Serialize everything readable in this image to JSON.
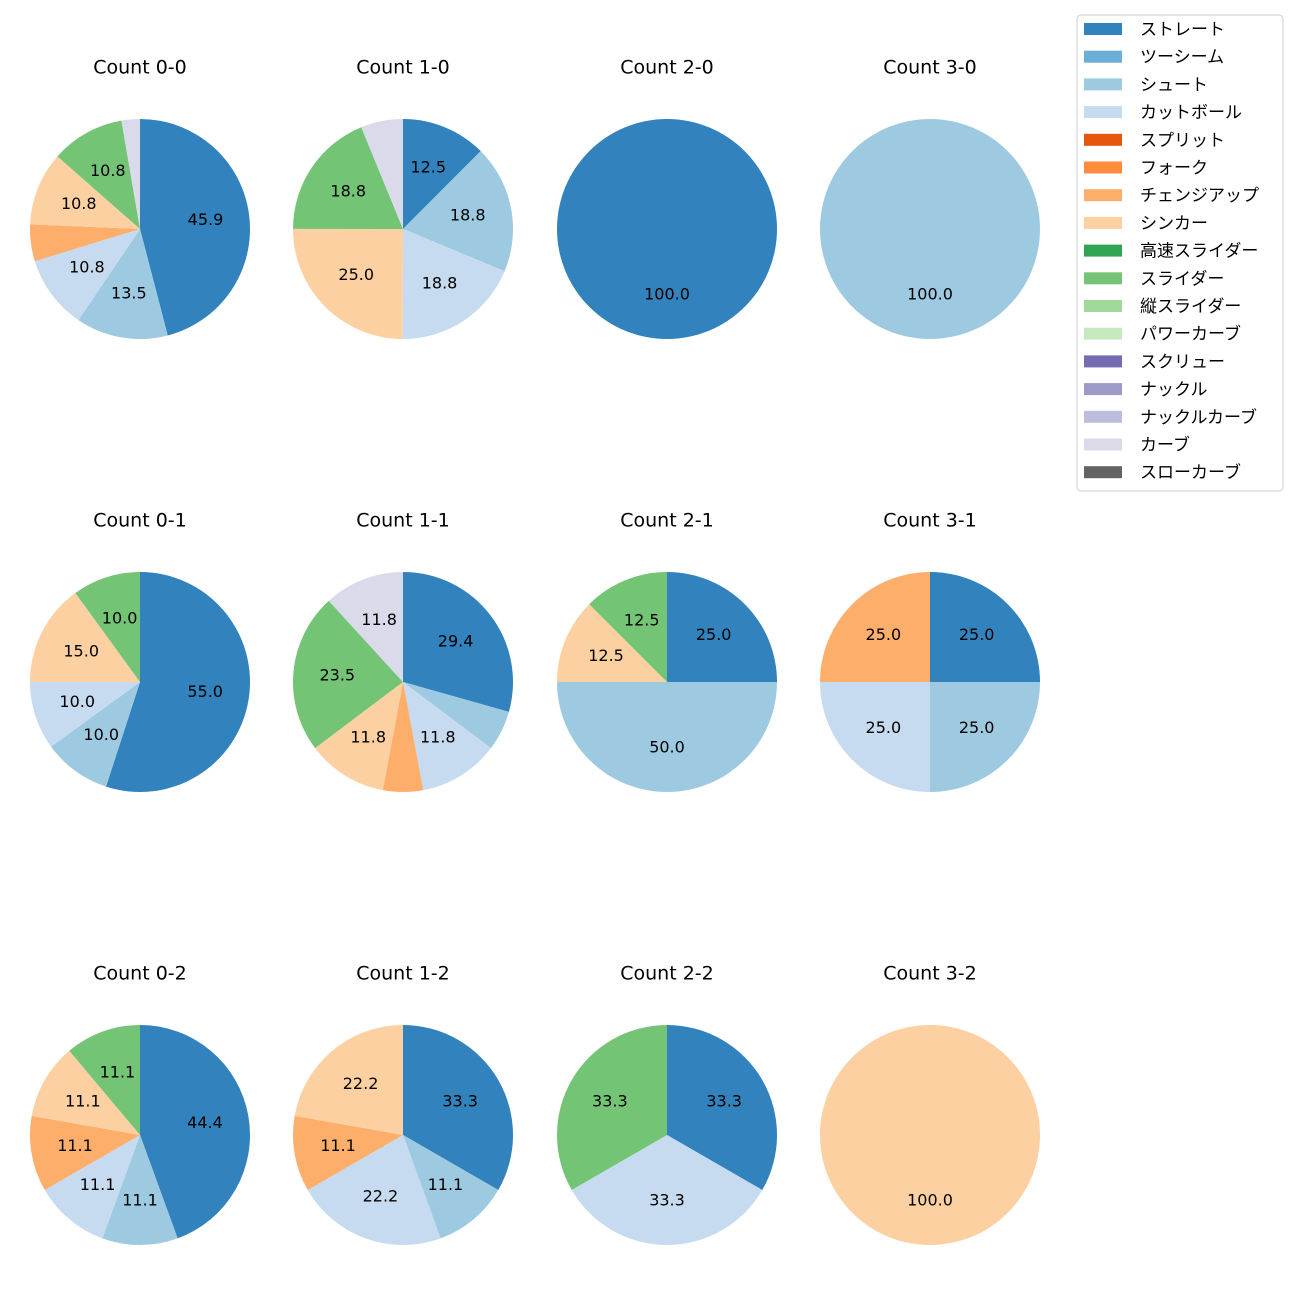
{
  "chart_data": [
    {
      "type": "pie",
      "title": "Count 0-0",
      "categories": [
        "ストレート",
        "シュート",
        "カットボール",
        "チェンジアップ",
        "シンカー",
        "スライダー",
        "カーブ"
      ],
      "values": [
        45.9,
        13.5,
        10.8,
        5.4,
        10.8,
        10.8,
        2.7
      ],
      "value_labels": [
        "45.9",
        "13.5",
        "10.8",
        null,
        "10.8",
        "10.8",
        null
      ]
    },
    {
      "type": "pie",
      "title": "Count 1-0",
      "categories": [
        "ストレート",
        "シュート",
        "カットボール",
        "シンカー",
        "スライダー",
        "カーブ"
      ],
      "values": [
        12.5,
        18.8,
        18.8,
        25.0,
        18.8,
        6.2
      ],
      "value_labels": [
        "12.5",
        "18.8",
        "18.8",
        "25.0",
        "18.8",
        null
      ]
    },
    {
      "type": "pie",
      "title": "Count 2-0",
      "categories": [
        "ストレート"
      ],
      "values": [
        100.0
      ],
      "value_labels": [
        "100.0"
      ]
    },
    {
      "type": "pie",
      "title": "Count 3-0",
      "categories": [
        "シュート"
      ],
      "values": [
        100.0
      ],
      "value_labels": [
        "100.0"
      ]
    },
    {
      "type": "pie",
      "title": "Count 0-1",
      "categories": [
        "ストレート",
        "シュート",
        "カットボール",
        "シンカー",
        "スライダー"
      ],
      "values": [
        55.0,
        10.0,
        10.0,
        15.0,
        10.0
      ],
      "value_labels": [
        "55.0",
        "10.0",
        "10.0",
        "15.0",
        "10.0"
      ]
    },
    {
      "type": "pie",
      "title": "Count 1-1",
      "categories": [
        "ストレート",
        "シュート",
        "カットボール",
        "チェンジアップ",
        "シンカー",
        "スライダー",
        "カーブ"
      ],
      "values": [
        29.4,
        5.9,
        11.8,
        5.9,
        11.8,
        23.5,
        11.8
      ],
      "value_labels": [
        "29.4",
        null,
        "11.8",
        null,
        "11.8",
        "23.5",
        "11.8"
      ]
    },
    {
      "type": "pie",
      "title": "Count 2-1",
      "categories": [
        "ストレート",
        "シュート",
        "シンカー",
        "スライダー"
      ],
      "values": [
        25.0,
        50.0,
        12.5,
        12.5
      ],
      "value_labels": [
        "25.0",
        "50.0",
        "12.5",
        "12.5"
      ]
    },
    {
      "type": "pie",
      "title": "Count 3-1",
      "categories": [
        "ストレート",
        "シュート",
        "カットボール",
        "チェンジアップ"
      ],
      "values": [
        25.0,
        25.0,
        25.0,
        25.0
      ],
      "value_labels": [
        "25.0",
        "25.0",
        "25.0",
        "25.0"
      ]
    },
    {
      "type": "pie",
      "title": "Count 0-2",
      "categories": [
        "ストレート",
        "シュート",
        "カットボール",
        "チェンジアップ",
        "シンカー",
        "スライダー"
      ],
      "values": [
        44.4,
        11.1,
        11.1,
        11.1,
        11.1,
        11.1
      ],
      "value_labels": [
        "44.4",
        "11.1",
        "11.1",
        "11.1",
        "11.1",
        "11.1"
      ]
    },
    {
      "type": "pie",
      "title": "Count 1-2",
      "categories": [
        "ストレート",
        "シュート",
        "カットボール",
        "チェンジアップ",
        "シンカー"
      ],
      "values": [
        33.3,
        11.1,
        22.2,
        11.1,
        22.2
      ],
      "value_labels": [
        "33.3",
        "11.1",
        "22.2",
        "11.1",
        "22.2"
      ]
    },
    {
      "type": "pie",
      "title": "Count 2-2",
      "categories": [
        "ストレート",
        "カットボール",
        "スライダー"
      ],
      "values": [
        33.3,
        33.3,
        33.3
      ],
      "value_labels": [
        "33.3",
        "33.3",
        "33.3"
      ]
    },
    {
      "type": "pie",
      "title": "Count 3-2",
      "categories": [
        "シンカー"
      ],
      "values": [
        100.0
      ],
      "value_labels": [
        "100.0"
      ]
    }
  ],
  "legend": [
    {
      "name": "ストレート",
      "color": "#3182bd"
    },
    {
      "name": "ツーシーム",
      "color": "#6baed6"
    },
    {
      "name": "シュート",
      "color": "#9ecae1"
    },
    {
      "name": "カットボール",
      "color": "#c6dbef"
    },
    {
      "name": "スプリット",
      "color": "#e6550d"
    },
    {
      "name": "フォーク",
      "color": "#fd8d3c"
    },
    {
      "name": "チェンジアップ",
      "color": "#fdae6b"
    },
    {
      "name": "シンカー",
      "color": "#fdd0a2"
    },
    {
      "name": "高速スライダー",
      "color": "#31a354"
    },
    {
      "name": "スライダー",
      "color": "#74c476"
    },
    {
      "name": "縦スライダー",
      "color": "#a1d99b"
    },
    {
      "name": "パワーカーブ",
      "color": "#c7e9c0"
    },
    {
      "name": "スクリュー",
      "color": "#756bb1"
    },
    {
      "name": "ナックル",
      "color": "#9e9ac8"
    },
    {
      "name": "ナックルカーブ",
      "color": "#bcbddc"
    },
    {
      "name": "カーブ",
      "color": "#dadaeb"
    },
    {
      "name": "スローカーブ",
      "color": "#636363"
    }
  ]
}
